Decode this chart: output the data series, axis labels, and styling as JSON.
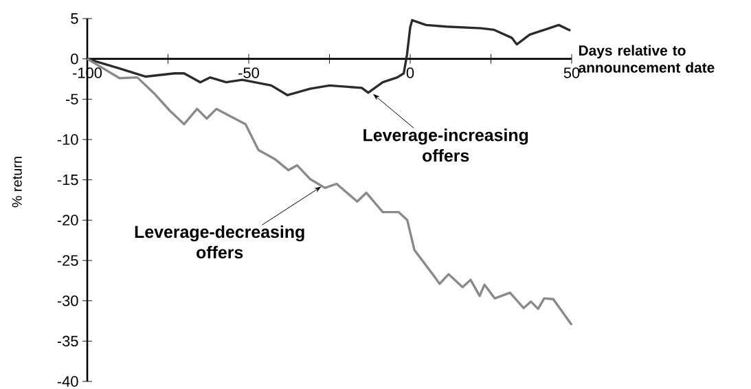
{
  "chart_data": {
    "type": "line",
    "xlabel": "Days relative to announcement date",
    "ylabel": "% return",
    "xlim": [
      -100,
      50
    ],
    "ylim": [
      -40,
      5
    ],
    "xticks": [
      -100,
      {
        "value": -75,
        "label": null
      },
      -50,
      {
        "value": -25,
        "label": null
      },
      0,
      {
        "value": 25,
        "label": null
      },
      50
    ],
    "yticks": [
      5,
      0,
      -5,
      -10,
      -15,
      -20,
      -25,
      -30,
      -35,
      -40
    ],
    "series": [
      {
        "color": "#2b2b2b",
        "x": [
          -100,
          -90,
          -82,
          -73,
          -70,
          -65,
          -62,
          -57,
          -52,
          -43,
          -38,
          -31,
          -25,
          -15,
          -13,
          -8.5,
          -4,
          -2,
          -1,
          0,
          0.6,
          4.9,
          11.3,
          22,
          26,
          31.5,
          33,
          37,
          43,
          46,
          49.6
        ],
        "values": [
          0,
          -1.2,
          -2.2,
          -1.8,
          -1.8,
          -2.9,
          -2.3,
          -2.9,
          -2.6,
          -3.3,
          -4.5,
          -3.7,
          -3.3,
          -3.6,
          -4.2,
          -2.9,
          -2.3,
          -1.8,
          0.5,
          3.9,
          4.8,
          4.2,
          4.0,
          3.8,
          3.6,
          2.6,
          1.8,
          3.0,
          3.8,
          4.2,
          3.5
        ]
      },
      {
        "color": "#8a8a8a",
        "x": [
          -100,
          -90,
          -84.5,
          -79,
          -74.5,
          -70,
          -66,
          -63,
          -60,
          -51,
          -47,
          -42,
          -37.7,
          -35,
          -31,
          -26.4,
          -22.8,
          -16.4,
          -13.6,
          -8.5,
          -3.6,
          -0.9,
          1.3,
          7.7,
          9.1,
          11.9,
          16.2,
          18.7,
          21.5,
          23,
          26.2,
          30.9,
          35.1,
          37.4,
          39.6,
          41.5,
          44.3,
          50
        ],
        "values": [
          0,
          -2.4,
          -2.3,
          -4.4,
          -6.4,
          -8.1,
          -6.2,
          -7.4,
          -6.2,
          -8.1,
          -11.3,
          -12.4,
          -13.8,
          -13.2,
          -14.9,
          -16.0,
          -15.5,
          -17.7,
          -16.6,
          -19.0,
          -19.0,
          -20.0,
          -23.7,
          -27.1,
          -27.9,
          -26.7,
          -28.3,
          -27.4,
          -29.4,
          -28.0,
          -29.7,
          -29.0,
          -30.9,
          -30.1,
          -31.0,
          -29.7,
          -29.8,
          -33.0
        ]
      }
    ],
    "annotations": [
      {
        "text": "Leverage-increasing offers",
        "x": -12,
        "y": -4.2
      },
      {
        "text": "Leverage-decreasing offers",
        "x": -27,
        "y": -15.7
      }
    ]
  }
}
